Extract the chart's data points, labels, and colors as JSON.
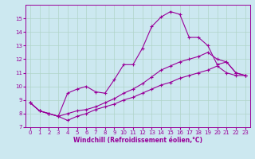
{
  "background_color": "#cce8f0",
  "grid_color": "#b0d4c8",
  "line_color": "#990099",
  "marker": "+",
  "xlabel": "Windchill (Refroidissement éolien,°C)",
  "xlim": [
    -0.5,
    23.5
  ],
  "ylim": [
    7,
    16
  ],
  "yticks": [
    7,
    8,
    9,
    10,
    11,
    12,
    13,
    14,
    15
  ],
  "xticks": [
    0,
    1,
    2,
    3,
    4,
    5,
    6,
    7,
    8,
    9,
    10,
    11,
    12,
    13,
    14,
    15,
    16,
    17,
    18,
    19,
    20,
    21,
    22,
    23
  ],
  "series1_x": [
    0,
    1,
    2,
    3,
    4,
    5,
    6,
    7,
    8,
    9,
    10,
    11,
    12,
    13,
    14,
    15,
    16,
    17,
    18,
    19,
    20,
    21,
    22,
    23
  ],
  "series1_y": [
    8.8,
    8.2,
    8.0,
    7.8,
    7.5,
    7.8,
    8.0,
    8.3,
    8.5,
    8.7,
    9.0,
    9.2,
    9.5,
    9.8,
    10.1,
    10.3,
    10.6,
    10.8,
    11.0,
    11.2,
    11.5,
    11.0,
    10.8,
    10.8
  ],
  "series2_x": [
    0,
    1,
    2,
    3,
    4,
    5,
    6,
    7,
    8,
    9,
    10,
    11,
    12,
    13,
    14,
    15,
    16,
    17,
    18,
    19,
    20,
    21,
    22,
    23
  ],
  "series2_y": [
    8.8,
    8.2,
    8.0,
    7.8,
    9.5,
    9.8,
    10.0,
    9.6,
    9.5,
    10.5,
    11.6,
    11.6,
    12.8,
    14.4,
    15.1,
    15.5,
    15.3,
    13.6,
    13.6,
    13.0,
    11.6,
    11.8,
    11.0,
    10.8
  ],
  "series3_x": [
    0,
    1,
    2,
    3,
    4,
    5,
    6,
    7,
    8,
    9,
    10,
    11,
    12,
    13,
    14,
    15,
    16,
    17,
    18,
    19,
    20,
    21,
    22,
    23
  ],
  "series3_y": [
    8.8,
    8.2,
    8.0,
    7.8,
    8.0,
    8.2,
    8.3,
    8.5,
    8.8,
    9.1,
    9.5,
    9.8,
    10.2,
    10.7,
    11.2,
    11.5,
    11.8,
    12.0,
    12.2,
    12.5,
    12.0,
    11.8,
    11.0,
    10.8
  ],
  "xlabel_fontsize": 5.5,
  "tick_fontsize": 5,
  "lw": 0.8,
  "ms": 3
}
